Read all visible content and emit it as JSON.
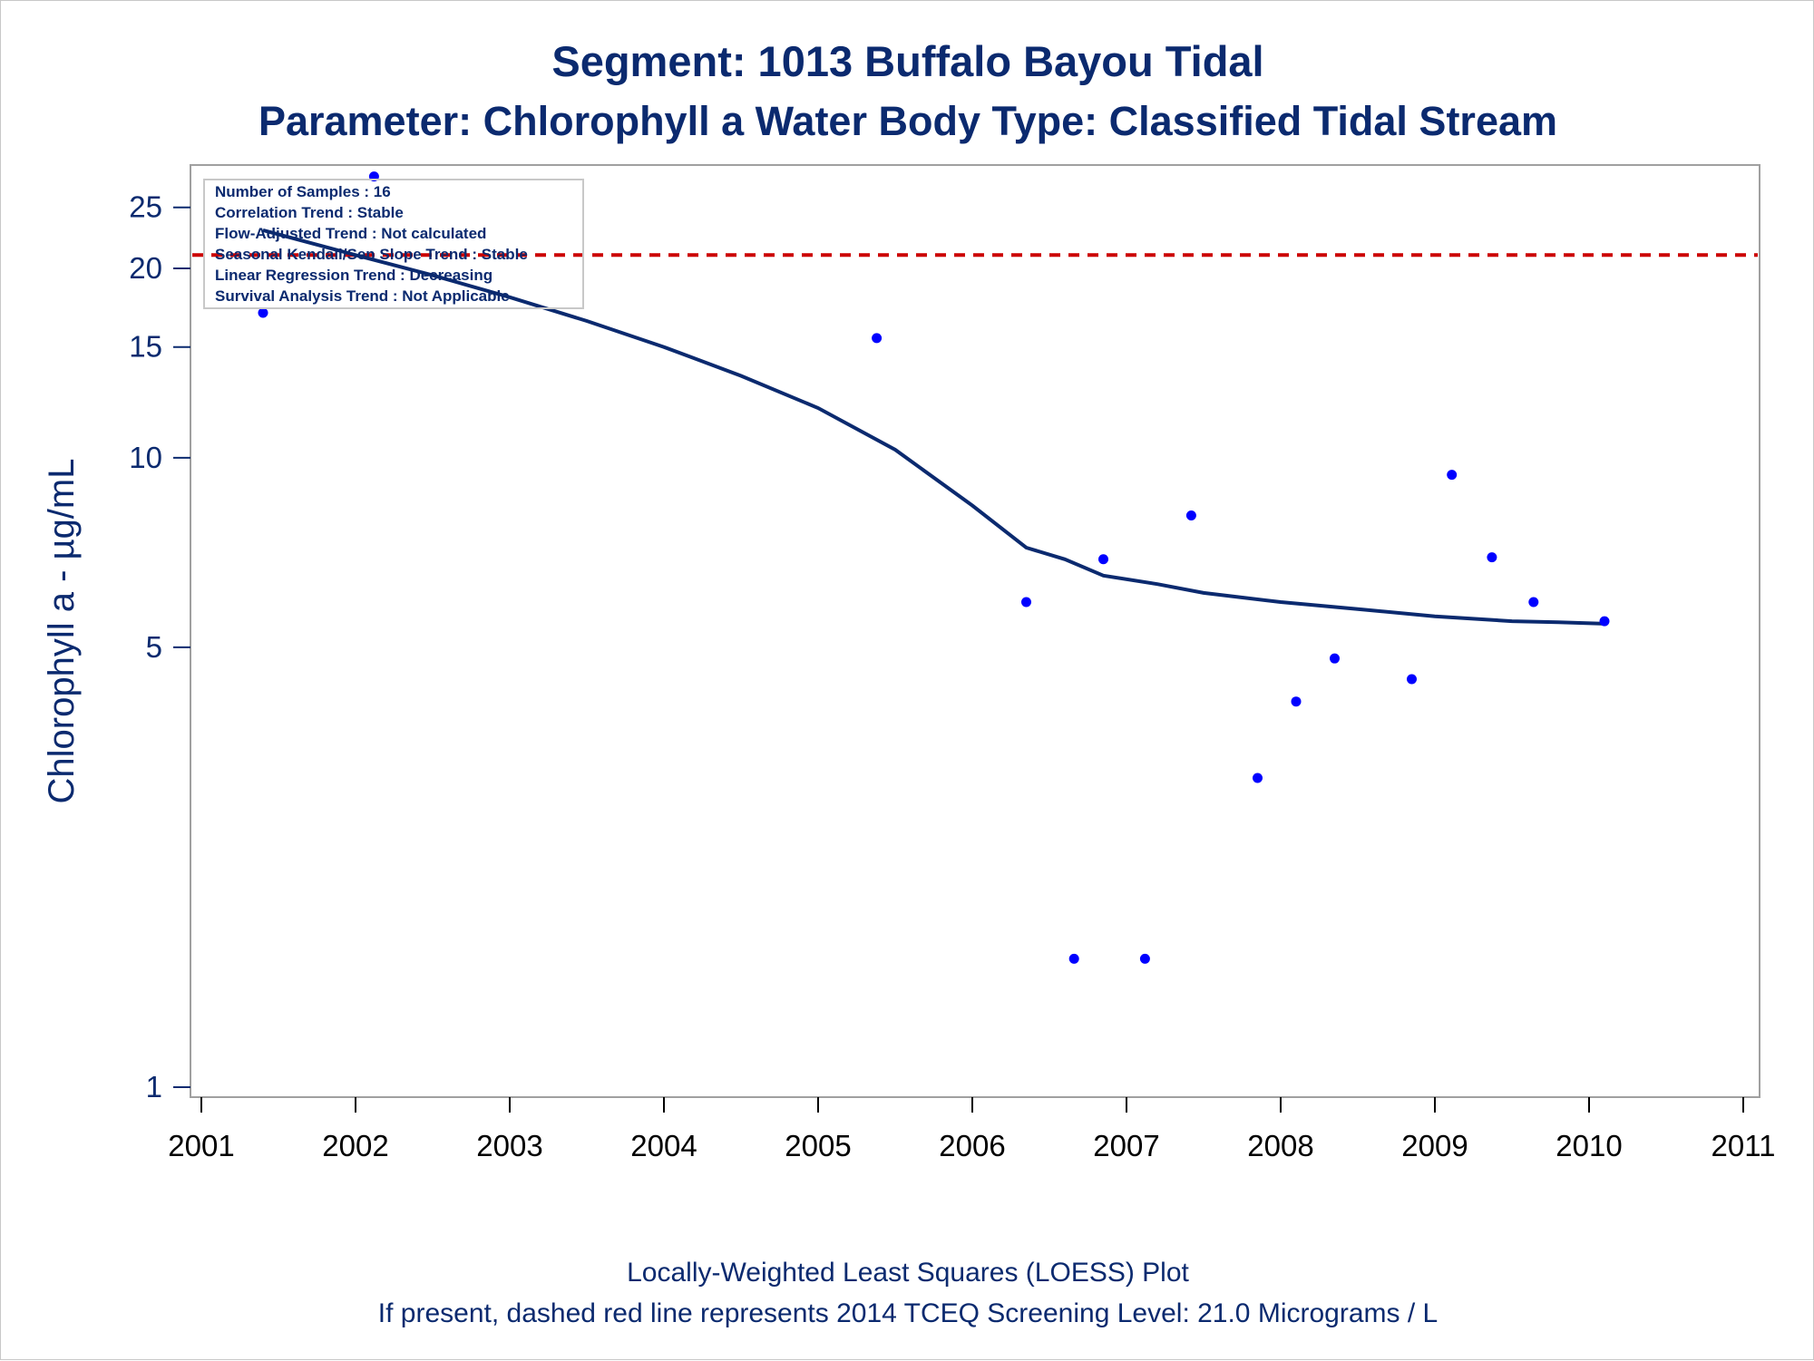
{
  "chart_data": {
    "type": "scatter",
    "title": "Segment: 1013  Buffalo Bayou Tidal",
    "subtitle": "Parameter: Chlorophyll a   Water Body Type: Classified Tidal Stream",
    "ylabel": "Chlorophyll a -  µg/mL",
    "xlabel": "",
    "y_scale": "log",
    "ylim": [
      1,
      28
    ],
    "xlim": [
      2001,
      2011
    ],
    "y_ticks": [
      1,
      5,
      10,
      15,
      20,
      25
    ],
    "x_ticks": [
      2001,
      2002,
      2003,
      2004,
      2005,
      2006,
      2007,
      2008,
      2009,
      2010,
      2011
    ],
    "grid": false,
    "stats_box": [
      "Number of Samples : 16",
      "Correlation Trend : Stable",
      "Flow-Adjusted Trend : Not calculated",
      "Seasonal Kendall/Sen Slope Trend : Stable",
      "Linear Regression Trend : Decreasing",
      "Survival Analysis Trend : Not Applicable"
    ],
    "screening_level": 21.0,
    "footnotes": [
      "Locally-Weighted Least Squares (LOESS) Plot",
      "If present, dashed red line represents 2014 TCEQ Screening Level: 21.0 Micrograms / L"
    ],
    "series": [
      {
        "kind": "points",
        "color": "#0000ff",
        "x": [
          2001.4,
          2002.12,
          2005.38,
          2006.35,
          2006.66,
          2006.85,
          2007.12,
          2007.42,
          2007.85,
          2008.1,
          2008.35,
          2008.85,
          2009.11,
          2009.37,
          2009.64,
          2010.1
        ],
        "y": [
          17,
          28,
          15.5,
          5.9,
          1.6,
          6.9,
          1.6,
          8.1,
          3.1,
          4.1,
          4.8,
          4.45,
          9.4,
          6.95,
          5.9,
          5.5
        ]
      },
      {
        "kind": "loess",
        "color": "#0b2a6f",
        "x": [
          2001.4,
          2002,
          2002.5,
          2003,
          2003.5,
          2004,
          2004.5,
          2005,
          2005.5,
          2006,
          2006.35,
          2006.6,
          2006.85,
          2007.2,
          2007.5,
          2008,
          2008.5,
          2009,
          2009.5,
          2009.8,
          2010.1
        ],
        "y": [
          23,
          21,
          19.5,
          18,
          16.5,
          15,
          13.5,
          12,
          10.3,
          8.4,
          7.2,
          6.9,
          6.5,
          6.3,
          6.1,
          5.9,
          5.75,
          5.6,
          5.5,
          5.48,
          5.45
        ]
      }
    ],
    "colors": {
      "text": "#0b2a6f",
      "points": "#0000ff",
      "loess": "#0b2a6f",
      "screening_line": "#cc0000",
      "frame": "#a0a0a0"
    }
  }
}
